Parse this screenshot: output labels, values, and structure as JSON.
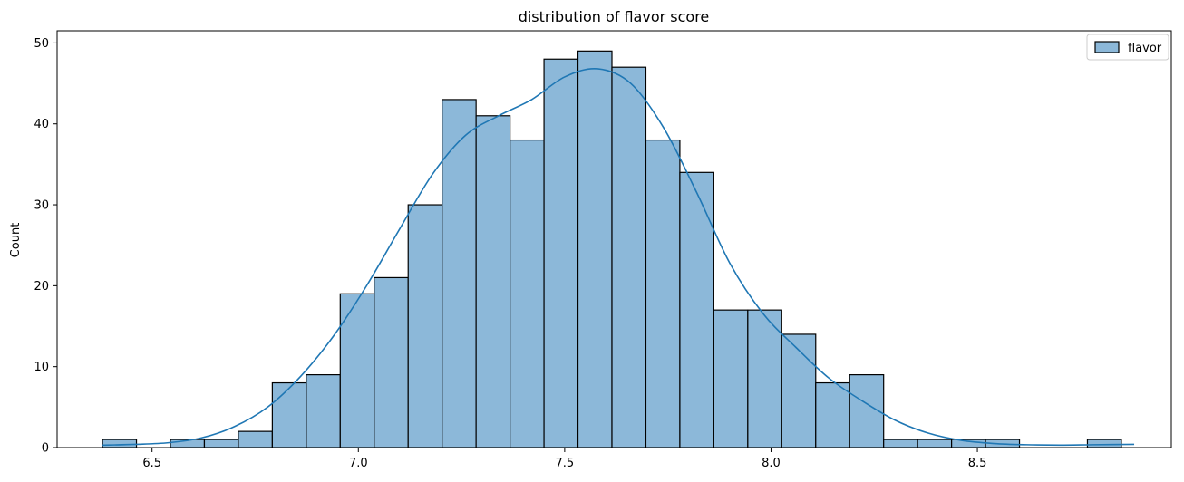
{
  "chart_data": {
    "type": "bar",
    "title": "distribution of flavor score",
    "xlabel": "",
    "ylabel": "Count",
    "x_ticks": [
      "6.5",
      "7.0",
      "7.5",
      "8.0",
      "8.5"
    ],
    "x_tick_values": [
      6.5,
      7.0,
      7.5,
      8.0,
      8.5
    ],
    "y_ticks": [
      "0",
      "10",
      "20",
      "30",
      "40",
      "50"
    ],
    "y_tick_values": [
      0,
      10,
      20,
      30,
      40,
      50
    ],
    "xlim": [
      6.27,
      8.97
    ],
    "ylim": [
      0,
      51.5
    ],
    "grid": false,
    "legend_position": "top-right",
    "series": [
      {
        "name": "flavor",
        "bin_start": 6.38,
        "bin_width": 0.0823,
        "counts": [
          1,
          0,
          1,
          1,
          2,
          8,
          9,
          19,
          21,
          30,
          43,
          41,
          38,
          48,
          49,
          47,
          38,
          34,
          17,
          17,
          14,
          8,
          9,
          1,
          1,
          1,
          1,
          0,
          0,
          1
        ],
        "fill_color": "#8cb8d9",
        "edge_color": "#000000"
      }
    ],
    "kde": {
      "color": "#1f77b4",
      "x": [
        6.38,
        6.46,
        6.54,
        6.62,
        6.7,
        6.78,
        6.86,
        6.94,
        7.02,
        7.1,
        7.18,
        7.26,
        7.34,
        7.42,
        7.5,
        7.58,
        7.66,
        7.74,
        7.82,
        7.9,
        7.98,
        8.06,
        8.14,
        8.22,
        8.3,
        8.38,
        8.46,
        8.54,
        8.62,
        8.7,
        8.78,
        8.88
      ],
      "y": [
        0.3,
        0.4,
        0.6,
        1.2,
        2.6,
        5.0,
        8.8,
        13.8,
        20.0,
        27.0,
        33.8,
        38.6,
        41.0,
        43.0,
        45.8,
        46.8,
        45.0,
        39.5,
        31.5,
        22.8,
        16.6,
        12.4,
        8.6,
        5.8,
        3.4,
        1.8,
        0.9,
        0.5,
        0.35,
        0.3,
        0.35,
        0.4
      ]
    }
  }
}
